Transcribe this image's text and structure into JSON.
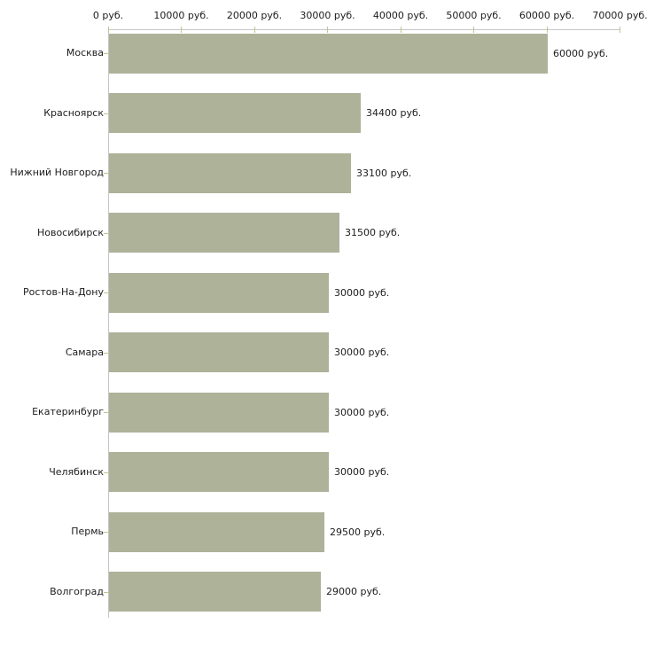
{
  "chart_data": {
    "type": "bar",
    "orientation": "horizontal",
    "title": "",
    "xlabel": "",
    "ylabel": "",
    "categories": [
      "Москва",
      "Красноярск",
      "Нижний Новгород",
      "Новосибирск",
      "Ростов-На-Дону",
      "Самара",
      "Екатеринбург",
      "Челябинск",
      "Пермь",
      "Волгоград"
    ],
    "values": [
      60000,
      34400,
      33100,
      31500,
      30000,
      30000,
      30000,
      30000,
      29500,
      29000
    ],
    "value_labels": [
      "60000 руб.",
      "34400 руб.",
      "33100 руб.",
      "31500 руб.",
      "30000 руб.",
      "30000 руб.",
      "30000 руб.",
      "30000 руб.",
      "29500 руб.",
      "29000 руб."
    ],
    "xlim": [
      0,
      70000
    ],
    "x_ticks": [
      0,
      10000,
      20000,
      30000,
      40000,
      50000,
      60000,
      70000
    ],
    "x_tick_labels": [
      "0 руб.",
      "10000 руб.",
      "20000 руб.",
      "30000 руб.",
      "40000 руб.",
      "50000 руб.",
      "60000 руб.",
      "70000 руб."
    ],
    "legend": null,
    "grid": false,
    "axis_position": "top",
    "bar_color": "#adb299",
    "axis_line_color": "#c6c6c6",
    "tick_color": "#c2c48e",
    "text_color": "#1c1c1c",
    "background_color": "#ffffff"
  }
}
